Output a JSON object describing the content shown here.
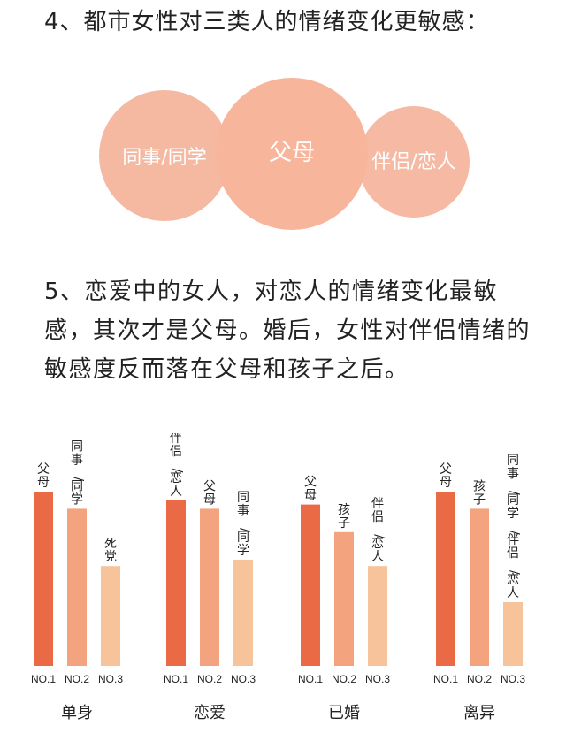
{
  "heading4": "4、都市女性对三类人的情绪变化更敏感：",
  "paragraph5": "5、恋爱中的女人，对恋人的情绪变化最敏感，其次才是父母。婚后，女性对伴侣情绪的敏感度反而落在父母和孩子之后。",
  "venn": {
    "left_label": "同事/同学",
    "center_label": "父母",
    "right_label": "伴侣/恋人",
    "colors": {
      "left": "#f5b9a2",
      "center": "#f7b69b",
      "right": "#f6b9a3",
      "text": "#ffffff"
    }
  },
  "chart_data": {
    "type": "bar",
    "series_colors": [
      "#ea6a45",
      "#f3a37e",
      "#f6c39a"
    ],
    "rank_labels": [
      "NO.1",
      "NO.2",
      "NO.3"
    ],
    "ylim": [
      0,
      100
    ],
    "groups": [
      {
        "name": "单身",
        "bars": [
          {
            "rank": "NO.1",
            "label": "父母",
            "value": 82
          },
          {
            "rank": "NO.2",
            "label": "同事/同学",
            "value": 74
          },
          {
            "rank": "NO.3",
            "label": "死党",
            "value": 47
          }
        ]
      },
      {
        "name": "恋爱",
        "bars": [
          {
            "rank": "NO.1",
            "label": "伴侣/恋人",
            "value": 78
          },
          {
            "rank": "NO.2",
            "label": "父母",
            "value": 74
          },
          {
            "rank": "NO.3",
            "label": "同事/同学",
            "value": 50
          }
        ]
      },
      {
        "name": "已婚",
        "bars": [
          {
            "rank": "NO.1",
            "label": "父母",
            "value": 76
          },
          {
            "rank": "NO.2",
            "label": "孩子",
            "value": 63
          },
          {
            "rank": "NO.3",
            "label": "伴侣/恋人",
            "value": 47
          }
        ]
      },
      {
        "name": "离异",
        "bars": [
          {
            "rank": "NO.1",
            "label": "父母",
            "value": 82
          },
          {
            "rank": "NO.2",
            "label": "孩子",
            "value": 74
          },
          {
            "rank": "NO.3",
            "label": "同事/同学/伴侣/恋人",
            "value": 30
          }
        ]
      }
    ]
  }
}
